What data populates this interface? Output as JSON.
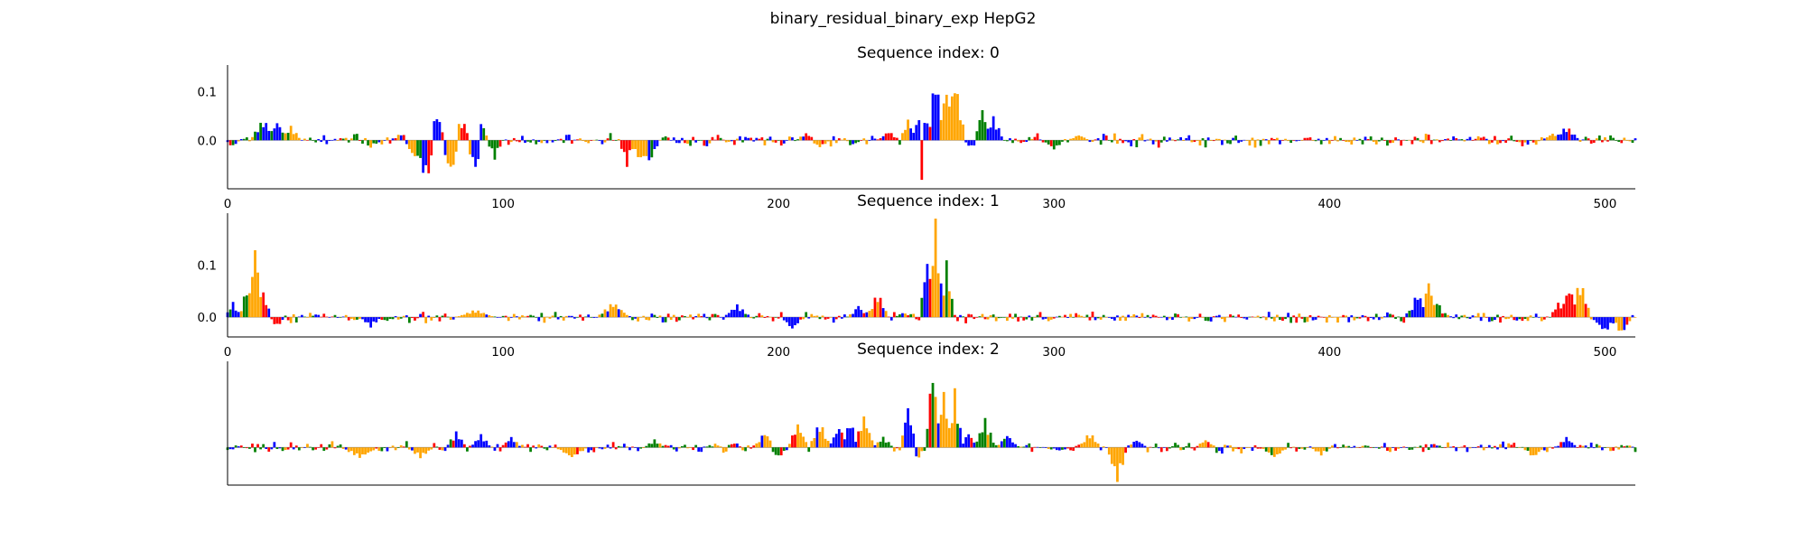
{
  "figure": {
    "title": "binary_residual_binary_exp HepG2"
  },
  "legend_colors": {
    "A": "#008000",
    "C": "#0000ff",
    "G": "#ffa500",
    "T": "#ff0000"
  },
  "chart_data": [
    {
      "type": "area",
      "title": "Sequence index: 0",
      "xlabel": "",
      "ylabel": "",
      "xlim": [
        0,
        511
      ],
      "ylim": [
        -0.1,
        0.155
      ],
      "xticks": [
        0,
        100,
        200,
        300,
        400,
        500
      ],
      "yticks": [
        0.0,
        0.1
      ],
      "ytick_labels": [
        "0.0",
        "0.1"
      ],
      "show_xticks": true,
      "peaks": [
        {
          "x": 13,
          "h": 0.045,
          "w": 4,
          "c": "C"
        },
        {
          "x": 18,
          "h": 0.04,
          "w": 3,
          "c": "C"
        },
        {
          "x": 23,
          "h": 0.03,
          "w": 3,
          "c": "G"
        },
        {
          "x": 63,
          "h": 0.015,
          "w": 3,
          "c": "C"
        },
        {
          "x": 68,
          "h": -0.04,
          "w": 3,
          "c": "G"
        },
        {
          "x": 72,
          "h": -0.085,
          "w": 4,
          "c": "C"
        },
        {
          "x": 76,
          "h": 0.06,
          "w": 2,
          "c": "C"
        },
        {
          "x": 81,
          "h": -0.07,
          "w": 3,
          "c": "G"
        },
        {
          "x": 85,
          "h": 0.045,
          "w": 3,
          "c": "T"
        },
        {
          "x": 90,
          "h": -0.06,
          "w": 3,
          "c": "C"
        },
        {
          "x": 92,
          "h": 0.04,
          "w": 2,
          "c": "C"
        },
        {
          "x": 97,
          "h": -0.04,
          "w": 2,
          "c": "A"
        },
        {
          "x": 145,
          "h": -0.055,
          "w": 2,
          "c": "T"
        },
        {
          "x": 150,
          "h": -0.045,
          "w": 4,
          "c": "G"
        },
        {
          "x": 153,
          "h": -0.05,
          "w": 3,
          "c": "C"
        },
        {
          "x": 210,
          "h": 0.015,
          "w": 3,
          "c": "T"
        },
        {
          "x": 215,
          "h": -0.015,
          "w": 3,
          "c": "G"
        },
        {
          "x": 240,
          "h": 0.02,
          "w": 3,
          "c": "T"
        },
        {
          "x": 247,
          "h": 0.045,
          "w": 2,
          "c": "G"
        },
        {
          "x": 252,
          "h": 0.07,
          "w": 3,
          "c": "C"
        },
        {
          "x": 257,
          "h": 0.145,
          "w": 2,
          "c": "C"
        },
        {
          "x": 261,
          "h": 0.11,
          "w": 3,
          "c": "G"
        },
        {
          "x": 264,
          "h": 0.13,
          "w": 3,
          "c": "G"
        },
        {
          "x": 252,
          "h": -0.085,
          "w": 1,
          "c": "T"
        },
        {
          "x": 255,
          "h": -0.02,
          "w": 3,
          "c": "C"
        },
        {
          "x": 274,
          "h": 0.07,
          "w": 2,
          "c": "A"
        },
        {
          "x": 278,
          "h": 0.05,
          "w": 3,
          "c": "C"
        },
        {
          "x": 270,
          "h": -0.015,
          "w": 3,
          "c": "C"
        },
        {
          "x": 300,
          "h": -0.02,
          "w": 3,
          "c": "A"
        },
        {
          "x": 309,
          "h": 0.012,
          "w": 3,
          "c": "G"
        },
        {
          "x": 486,
          "h": 0.03,
          "w": 4,
          "c": "C"
        },
        {
          "x": 481,
          "h": 0.015,
          "w": 3,
          "c": "G"
        }
      ],
      "noise": {
        "amp": 0.012,
        "seed": 11
      }
    },
    {
      "type": "area",
      "title": "Sequence index: 1",
      "xlabel": "",
      "ylabel": "",
      "xlim": [
        0,
        511
      ],
      "ylim": [
        -0.038,
        0.2
      ],
      "xticks": [
        0,
        100,
        200,
        300,
        400,
        500
      ],
      "yticks": [
        0.0,
        0.1
      ],
      "ytick_labels": [
        "0.0",
        "0.1"
      ],
      "show_xticks": true,
      "peaks": [
        {
          "x": 2,
          "h": 0.03,
          "w": 2,
          "c": "C"
        },
        {
          "x": 7,
          "h": 0.06,
          "w": 2,
          "c": "A"
        },
        {
          "x": 10,
          "h": 0.145,
          "w": 2,
          "c": "G"
        },
        {
          "x": 13,
          "h": 0.05,
          "w": 2,
          "c": "T"
        },
        {
          "x": 18,
          "h": -0.02,
          "w": 2,
          "c": "T"
        },
        {
          "x": 52,
          "h": -0.02,
          "w": 3,
          "c": "C"
        },
        {
          "x": 90,
          "h": 0.015,
          "w": 6,
          "c": "G"
        },
        {
          "x": 140,
          "h": 0.03,
          "w": 5,
          "c": "G"
        },
        {
          "x": 185,
          "h": 0.025,
          "w": 4,
          "c": "C"
        },
        {
          "x": 205,
          "h": -0.025,
          "w": 3,
          "c": "C"
        },
        {
          "x": 229,
          "h": 0.025,
          "w": 2,
          "c": "C"
        },
        {
          "x": 236,
          "h": 0.05,
          "w": 3,
          "c": "G"
        },
        {
          "x": 254,
          "h": 0.12,
          "w": 2,
          "c": "C"
        },
        {
          "x": 257,
          "h": 0.195,
          "w": 2,
          "c": "G"
        },
        {
          "x": 261,
          "h": 0.11,
          "w": 2,
          "c": "A"
        },
        {
          "x": 252,
          "h": -0.012,
          "w": 2,
          "c": "T"
        },
        {
          "x": 432,
          "h": 0.05,
          "w": 3,
          "c": "C"
        },
        {
          "x": 436,
          "h": 0.075,
          "w": 2,
          "c": "G"
        },
        {
          "x": 439,
          "h": 0.035,
          "w": 2,
          "c": "A"
        },
        {
          "x": 483,
          "h": 0.03,
          "w": 2,
          "c": "T"
        },
        {
          "x": 487,
          "h": 0.06,
          "w": 3,
          "c": "T"
        },
        {
          "x": 491,
          "h": 0.075,
          "w": 3,
          "c": "G"
        },
        {
          "x": 500,
          "h": -0.03,
          "w": 4,
          "c": "C"
        },
        {
          "x": 506,
          "h": -0.035,
          "w": 3,
          "c": "G"
        }
      ],
      "noise": {
        "amp": 0.01,
        "seed": 23
      }
    },
    {
      "type": "area",
      "title": "Sequence index: 2",
      "xlabel": "",
      "ylabel": "",
      "xlim": [
        0,
        511
      ],
      "ylim": [
        -0.07,
        0.16
      ],
      "xticks": [],
      "yticks": [],
      "ytick_labels": [],
      "show_xticks": false,
      "peaks": [
        {
          "x": 48,
          "h": -0.02,
          "w": 6,
          "c": "G"
        },
        {
          "x": 70,
          "h": -0.02,
          "w": 4,
          "c": "G"
        },
        {
          "x": 83,
          "h": 0.03,
          "w": 3,
          "c": "C"
        },
        {
          "x": 92,
          "h": 0.025,
          "w": 3,
          "c": "C"
        },
        {
          "x": 103,
          "h": 0.02,
          "w": 3,
          "c": "C"
        },
        {
          "x": 125,
          "h": -0.02,
          "w": 5,
          "c": "G"
        },
        {
          "x": 155,
          "h": 0.015,
          "w": 3,
          "c": "A"
        },
        {
          "x": 195,
          "h": 0.03,
          "w": 3,
          "c": "G"
        },
        {
          "x": 200,
          "h": -0.02,
          "w": 3,
          "c": "A"
        },
        {
          "x": 207,
          "h": 0.045,
          "w": 3,
          "c": "G"
        },
        {
          "x": 215,
          "h": 0.05,
          "w": 3,
          "c": "G"
        },
        {
          "x": 222,
          "h": 0.04,
          "w": 3,
          "c": "C"
        },
        {
          "x": 226,
          "h": 0.055,
          "w": 2,
          "c": "C"
        },
        {
          "x": 231,
          "h": 0.06,
          "w": 3,
          "c": "G"
        },
        {
          "x": 238,
          "h": 0.02,
          "w": 3,
          "c": "A"
        },
        {
          "x": 247,
          "h": 0.08,
          "w": 2,
          "c": "C"
        },
        {
          "x": 250,
          "h": -0.025,
          "w": 3,
          "c": "C"
        },
        {
          "x": 256,
          "h": 0.155,
          "w": 2,
          "c": "A"
        },
        {
          "x": 260,
          "h": 0.11,
          "w": 2,
          "c": "G"
        },
        {
          "x": 264,
          "h": 0.11,
          "w": 2,
          "c": "G"
        },
        {
          "x": 269,
          "h": 0.03,
          "w": 2,
          "c": "C"
        },
        {
          "x": 275,
          "h": 0.055,
          "w": 3,
          "c": "A"
        },
        {
          "x": 283,
          "h": 0.025,
          "w": 3,
          "c": "C"
        },
        {
          "x": 313,
          "h": 0.03,
          "w": 3,
          "c": "G"
        },
        {
          "x": 323,
          "h": -0.065,
          "w": 3,
          "c": "G"
        },
        {
          "x": 330,
          "h": 0.015,
          "w": 3,
          "c": "C"
        },
        {
          "x": 355,
          "h": 0.015,
          "w": 3,
          "c": "G"
        },
        {
          "x": 380,
          "h": -0.02,
          "w": 4,
          "c": "G"
        },
        {
          "x": 397,
          "h": -0.015,
          "w": 3,
          "c": "G"
        },
        {
          "x": 474,
          "h": -0.02,
          "w": 3,
          "c": "G"
        },
        {
          "x": 486,
          "h": 0.02,
          "w": 3,
          "c": "C"
        }
      ],
      "noise": {
        "amp": 0.01,
        "seed": 37
      }
    }
  ]
}
